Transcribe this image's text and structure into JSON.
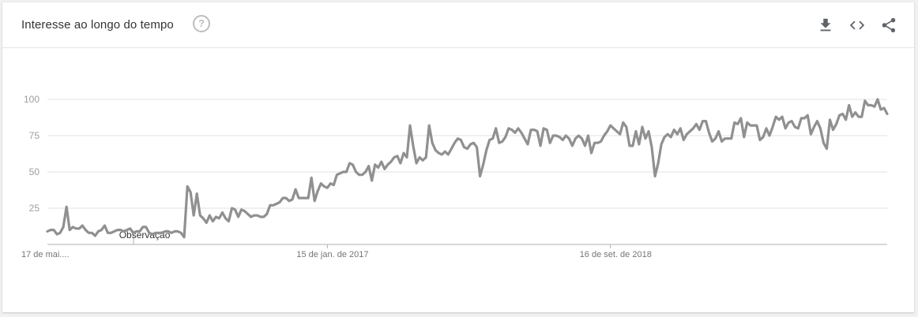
{
  "header": {
    "title": "Interesse ao longo do tempo",
    "help_glyph": "?",
    "icons": [
      "download-icon",
      "embed-code-icon",
      "share-icon"
    ]
  },
  "colors": {
    "line": "#909090",
    "grid": "#e0e0e0",
    "axis": "#b0b0b0",
    "tick_text": "#9e9e9e",
    "date_text": "#757575"
  },
  "chart_data": {
    "type": "line",
    "title": "",
    "xlabel": "",
    "ylabel": "",
    "ylim": [
      0,
      100
    ],
    "grid": true,
    "y_ticks": [
      25,
      50,
      75,
      100
    ],
    "x_tick_labels": [
      {
        "index": 0,
        "label": "17 de mai...."
      },
      {
        "index": 88,
        "label": "15 de jan. de 2017"
      },
      {
        "index": 177,
        "label": "16 de set. de 2018"
      }
    ],
    "annotation": {
      "index": 40,
      "label": "Observação"
    },
    "series": [
      {
        "values": [
          9,
          10,
          10,
          7,
          8,
          12,
          26,
          10,
          12,
          11,
          11,
          13,
          10,
          8,
          8,
          6,
          9,
          10,
          13,
          8,
          8,
          9,
          10,
          10,
          9,
          10,
          11,
          8,
          9,
          9,
          12,
          12,
          8,
          7,
          8,
          8,
          8,
          9,
          9,
          8,
          9,
          9,
          8,
          5,
          40,
          36,
          20,
          35,
          20,
          18,
          15,
          20,
          16,
          19,
          18,
          22,
          18,
          16,
          25,
          24,
          19,
          24,
          23,
          21,
          19,
          20,
          20,
          19,
          19,
          21,
          27,
          27,
          28,
          29,
          32,
          32,
          30,
          31,
          38,
          32,
          32,
          32,
          32,
          46,
          30,
          37,
          42,
          40,
          39,
          42,
          41,
          48,
          49,
          50,
          50,
          56,
          55,
          50,
          48,
          48,
          50,
          54,
          44,
          55,
          53,
          57,
          52,
          55,
          57,
          60,
          61,
          56,
          63,
          60,
          82,
          68,
          56,
          60,
          58,
          60,
          82,
          70,
          65,
          63,
          62,
          64,
          62,
          66,
          70,
          73,
          72,
          67,
          66,
          69,
          70,
          67,
          47,
          55,
          65,
          72,
          73,
          80,
          70,
          71,
          74,
          80,
          79,
          77,
          80,
          77,
          73,
          69,
          79,
          79,
          78,
          68,
          80,
          79,
          70,
          75,
          75,
          74,
          72,
          75,
          73,
          68,
          73,
          75,
          73,
          68,
          75,
          63,
          70,
          70,
          71,
          75,
          78,
          82,
          80,
          78,
          76,
          84,
          81,
          68,
          68,
          78,
          69,
          81,
          73,
          78,
          67,
          47,
          56,
          69,
          74,
          76,
          74,
          79,
          76,
          80,
          72,
          76,
          78,
          80,
          83,
          79,
          85,
          85,
          77,
          71,
          73,
          78,
          71,
          73,
          73,
          73,
          84,
          83,
          87,
          74,
          84,
          82,
          82,
          82,
          72,
          74,
          80,
          75,
          81,
          88,
          86,
          88,
          80,
          84,
          85,
          81,
          80,
          87,
          87,
          89,
          76,
          81,
          85,
          80,
          70,
          66,
          86,
          79,
          83,
          89,
          90,
          86,
          96,
          88,
          91,
          88,
          88,
          99,
          96,
          96,
          95,
          100,
          93,
          94,
          90
        ]
      }
    ]
  }
}
